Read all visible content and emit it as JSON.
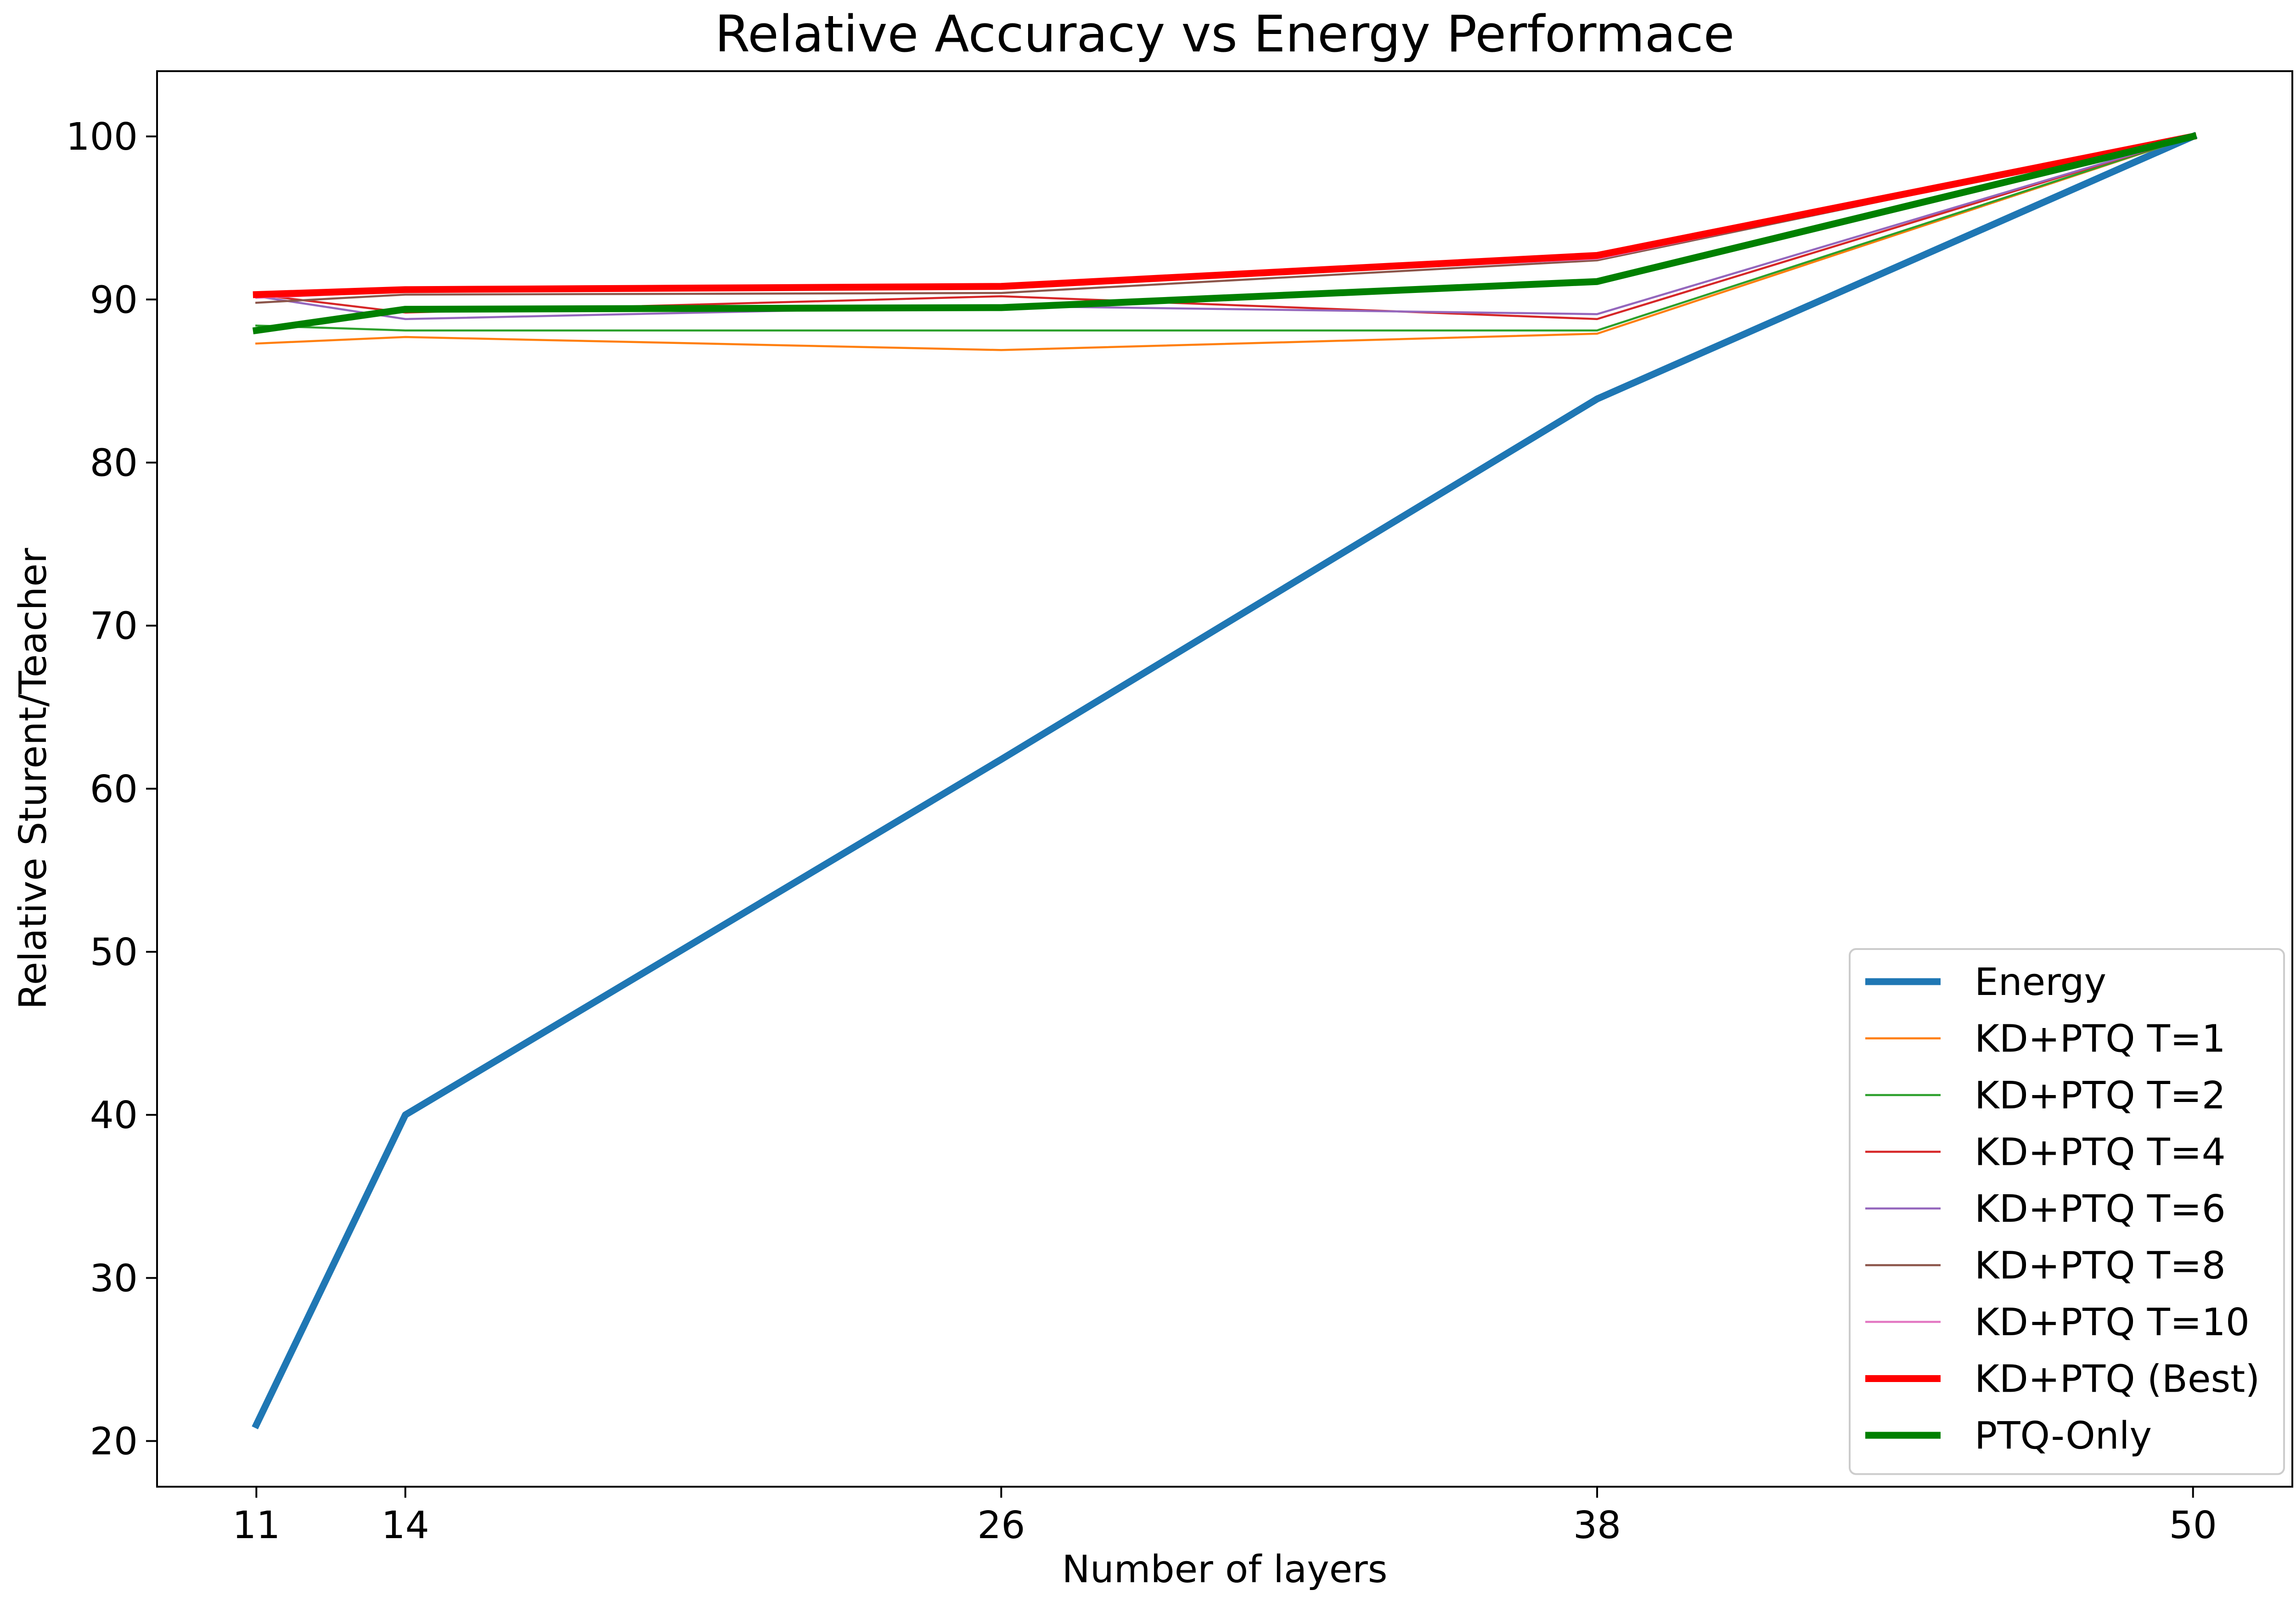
{
  "chart_data": {
    "type": "line",
    "title": "Relative Accuracy vs Energy Performace",
    "xlabel": "Number of layers",
    "ylabel": "Relative Sturent/Teacher",
    "x": [
      11,
      14,
      26,
      38,
      50
    ],
    "xlim": [
      9,
      52
    ],
    "ylim": [
      17.2,
      104
    ],
    "xticks": [
      11,
      14,
      26,
      38,
      50
    ],
    "yticks": [
      20,
      30,
      40,
      50,
      60,
      70,
      80,
      90,
      100
    ],
    "grid": false,
    "legend_position": "lower right",
    "series": [
      {
        "name": "Energy",
        "values": [
          21.0,
          40.0,
          61.8,
          83.9,
          100.0
        ],
        "color": "#1f77b4",
        "linewidth": "thick"
      },
      {
        "name": "KD+PTQ T=1",
        "values": [
          87.3,
          87.7,
          86.9,
          87.9,
          100.0
        ],
        "color": "#ff7f0e",
        "linewidth": "thin"
      },
      {
        "name": "KD+PTQ T=2",
        "values": [
          88.4,
          88.1,
          88.1,
          88.1,
          100.0
        ],
        "color": "#2ca02c",
        "linewidth": "thin"
      },
      {
        "name": "KD+PTQ T=4",
        "values": [
          90.3,
          89.2,
          90.2,
          88.8,
          100.0
        ],
        "color": "#d62728",
        "linewidth": "thin"
      },
      {
        "name": "KD+PTQ T=6",
        "values": [
          90.2,
          88.8,
          89.6,
          89.1,
          100.0
        ],
        "color": "#9467bd",
        "linewidth": "thin"
      },
      {
        "name": "KD+PTQ T=8",
        "values": [
          89.8,
          90.3,
          90.4,
          92.4,
          100.0
        ],
        "color": "#8c564b",
        "linewidth": "thin"
      },
      {
        "name": "KD+PTQ T=10",
        "values": [
          90.1,
          90.5,
          90.8,
          92.5,
          100.0
        ],
        "color": "#e377c2",
        "linewidth": "thin"
      },
      {
        "name": "KD+PTQ (Best)",
        "values": [
          90.3,
          90.6,
          90.8,
          92.7,
          100.0
        ],
        "color": "#ff0000",
        "linewidth": "thick"
      },
      {
        "name": "PTQ-Only",
        "values": [
          88.1,
          89.4,
          89.5,
          91.1,
          100.0
        ],
        "color": "#008000",
        "linewidth": "thick"
      }
    ]
  }
}
